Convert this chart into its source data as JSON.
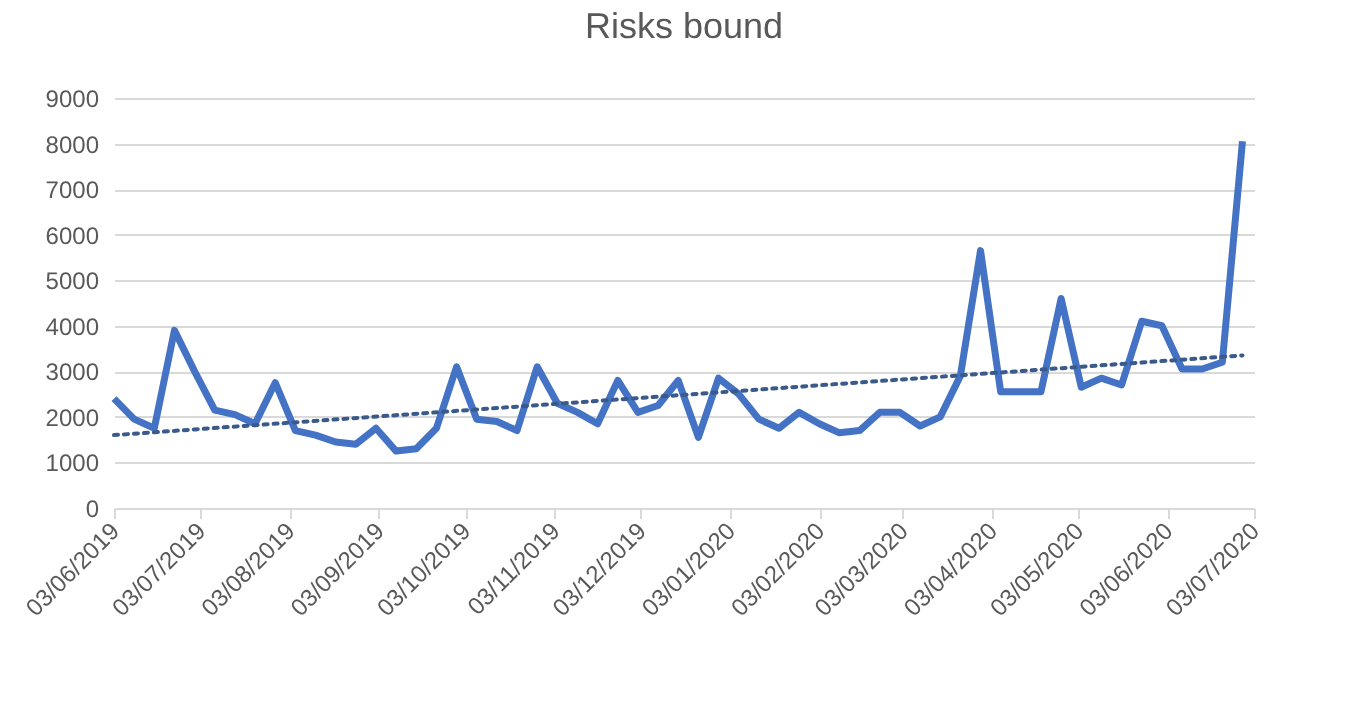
{
  "chart_data": {
    "type": "line",
    "title": "Risks bound",
    "x": [
      "2019-06-03",
      "2019-06-10",
      "2019-06-17",
      "2019-06-24",
      "2019-07-01",
      "2019-07-08",
      "2019-07-15",
      "2019-07-22",
      "2019-07-29",
      "2019-08-05",
      "2019-08-12",
      "2019-08-19",
      "2019-08-26",
      "2019-09-02",
      "2019-09-09",
      "2019-09-16",
      "2019-09-23",
      "2019-09-30",
      "2019-10-07",
      "2019-10-14",
      "2019-10-21",
      "2019-10-28",
      "2019-11-04",
      "2019-11-11",
      "2019-11-18",
      "2019-11-25",
      "2019-12-02",
      "2019-12-09",
      "2019-12-16",
      "2019-12-23",
      "2019-12-30",
      "2020-01-06",
      "2020-01-13",
      "2020-01-20",
      "2020-01-27",
      "2020-02-03",
      "2020-02-10",
      "2020-02-17",
      "2020-02-24",
      "2020-03-02",
      "2020-03-09",
      "2020-03-16",
      "2020-03-23",
      "2020-03-30",
      "2020-04-06",
      "2020-04-13",
      "2020-04-20",
      "2020-04-27",
      "2020-05-04",
      "2020-05-11",
      "2020-05-18",
      "2020-05-25",
      "2020-06-01",
      "2020-06-08",
      "2020-06-15",
      "2020-06-22",
      "2020-06-29"
    ],
    "series": [
      {
        "color": "#4472c4",
        "line_style": "solid",
        "values": [
          2400,
          1950,
          1750,
          3900,
          3000,
          2150,
          2050,
          1850,
          2750,
          1700,
          1600,
          1450,
          1400,
          1750,
          1250,
          1300,
          1750,
          3100,
          1950,
          1900,
          1700,
          3100,
          2300,
          2100,
          1850,
          2800,
          2100,
          2250,
          2800,
          1550,
          2850,
          2500,
          1950,
          1750,
          2100,
          1850,
          1650,
          1700,
          2100,
          2100,
          1800,
          2000,
          2900,
          5650,
          2550,
          2550,
          2550,
          4600,
          2650,
          2850,
          2700,
          4100,
          4000,
          3050,
          3050,
          3200,
          8050
        ]
      },
      {
        "type": "line",
        "color": "#3b5a8c",
        "line_style": "dotted",
        "x": [
          "2019-06-03",
          "2020-06-29"
        ],
        "values": [
          1600,
          3350
        ]
      }
    ],
    "xlim": [
      "2019-06-03",
      "2020-07-03"
    ],
    "xticks": [
      {
        "value": "2019-06-03",
        "label": "03/06/2019"
      },
      {
        "value": "2019-07-03",
        "label": "03/07/2019"
      },
      {
        "value": "2019-08-03",
        "label": "03/08/2019"
      },
      {
        "value": "2019-09-03",
        "label": "03/09/2019"
      },
      {
        "value": "2019-10-03",
        "label": "03/10/2019"
      },
      {
        "value": "2019-11-03",
        "label": "03/11/2019"
      },
      {
        "value": "2019-12-03",
        "label": "03/12/2019"
      },
      {
        "value": "2020-01-03",
        "label": "03/01/2020"
      },
      {
        "value": "2020-02-03",
        "label": "03/02/2020"
      },
      {
        "value": "2020-03-03",
        "label": "03/03/2020"
      },
      {
        "value": "2020-04-03",
        "label": "03/04/2020"
      },
      {
        "value": "2020-05-03",
        "label": "03/05/2020"
      },
      {
        "value": "2020-06-03",
        "label": "03/06/2020"
      },
      {
        "value": "2020-07-03",
        "label": "03/07/2020"
      }
    ],
    "ylim": [
      0,
      9000
    ],
    "yticks": [
      0,
      1000,
      2000,
      3000,
      4000,
      5000,
      6000,
      7000,
      8000,
      9000
    ],
    "grid": "y",
    "marker": "none"
  }
}
